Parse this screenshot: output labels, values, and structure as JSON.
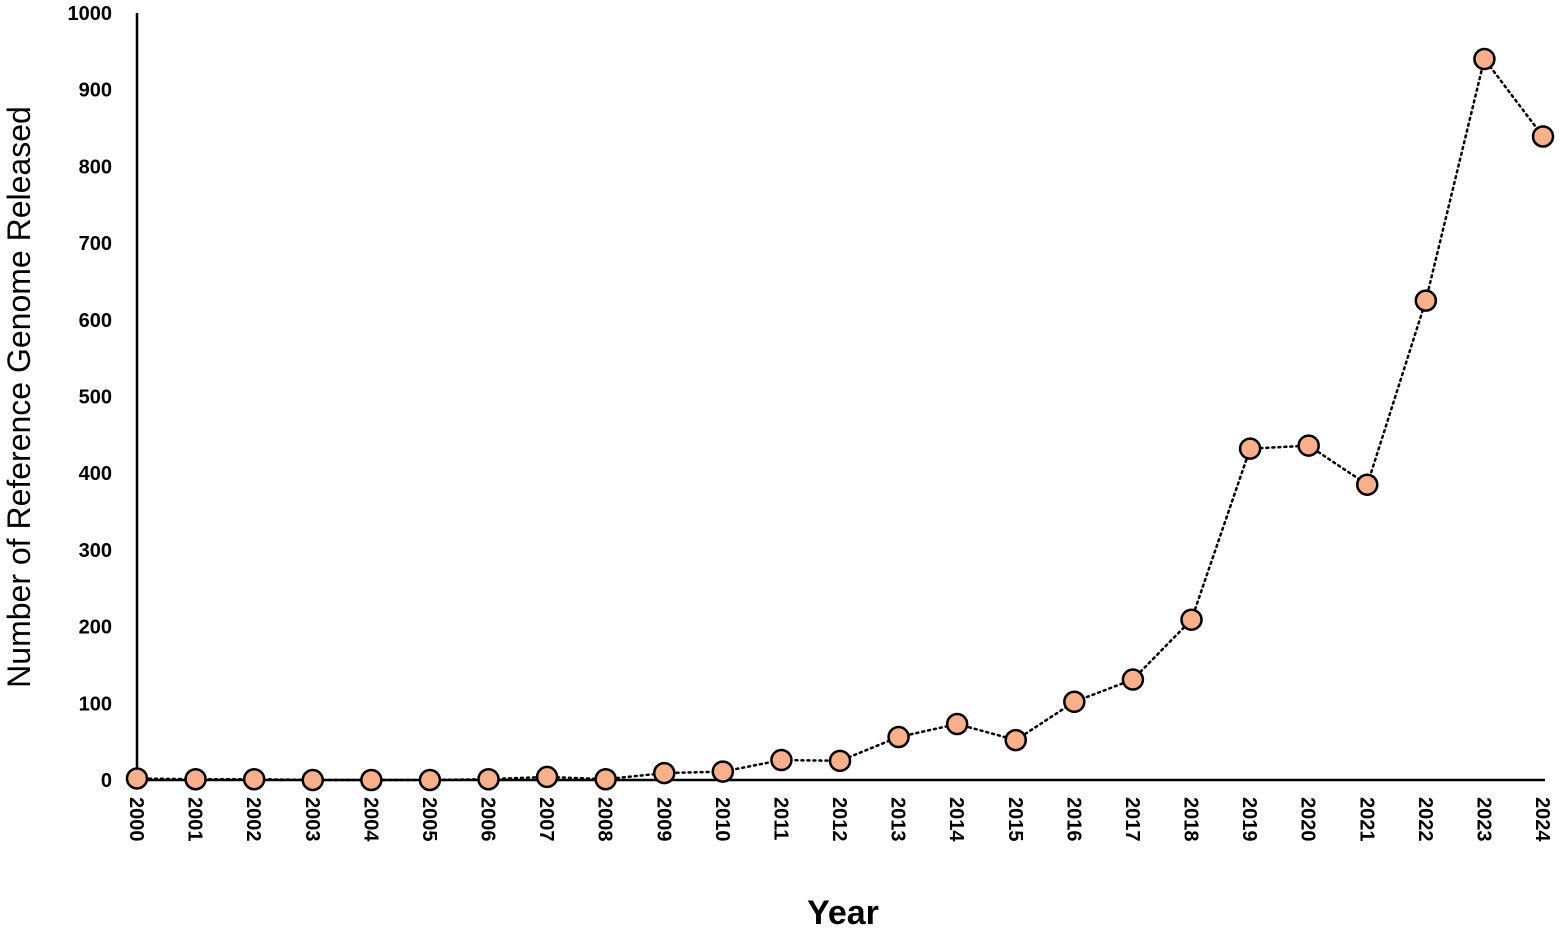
{
  "chart_data": {
    "type": "line",
    "title": "",
    "xlabel": "Year",
    "ylabel": "Number of Reference Genome Released",
    "ylim": [
      0,
      1000
    ],
    "yticks": [
      0,
      100,
      200,
      300,
      400,
      500,
      600,
      700,
      800,
      900,
      1000
    ],
    "categories": [
      "2000",
      "2001",
      "2002",
      "2003",
      "2004",
      "2005",
      "2006",
      "2007",
      "2008",
      "2009",
      "2010",
      "2011",
      "2012",
      "2013",
      "2014",
      "2015",
      "2016",
      "2017",
      "2018",
      "2019",
      "2020",
      "2021",
      "2022",
      "2023",
      "2024"
    ],
    "series": [
      {
        "values": [
          2,
          1,
          1,
          0,
          0,
          0,
          1,
          4,
          1,
          9,
          11,
          26,
          25,
          56,
          73,
          52,
          102,
          131,
          209,
          432,
          436,
          385,
          625,
          940,
          839
        ]
      }
    ],
    "grid": false,
    "legend": "none",
    "colors": {
      "marker_fill": "#F8B08A",
      "marker_stroke": "#000000",
      "line": "#000000",
      "axis": "#000000"
    }
  }
}
